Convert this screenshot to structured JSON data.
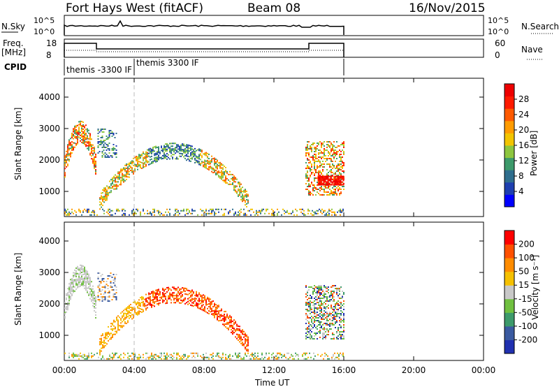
{
  "header": {
    "radar": "Fort Hays West (fitACF)",
    "beam": "Beam 08",
    "date": "16/Nov/2015"
  },
  "top_panels": {
    "nsky_label": "N.Sky",
    "nsky_ticks": [
      "10^5",
      "10^0"
    ],
    "nsearch_label": "N.Search",
    "nsearch_ticks": [
      "10^5",
      "10^0"
    ],
    "freq_label": "Freq.",
    "freq_unit": "[MHz]",
    "freq_ticks": [
      "18",
      "8"
    ],
    "nave_label": "Nave",
    "nave_ticks": [
      "60",
      "0"
    ],
    "cpid_label": "CPID",
    "cpid_entries": [
      "themis -3300 IF",
      "themis 3300 IF"
    ]
  },
  "chart_data": [
    {
      "type": "heatmap",
      "name": "power-panel",
      "ylabel": "Slant Range [km]",
      "y_ticks": [
        1000,
        2000,
        3000,
        4000
      ],
      "ylim": [
        200,
        4600
      ],
      "x_ticks": [
        "00:00",
        "04:00",
        "08:00",
        "12:00",
        "16:00",
        "20:00",
        "00:00"
      ],
      "xlim_hours": [
        0,
        24
      ],
      "data_end_hour": 16,
      "colorbar": {
        "label": "Power [dB]",
        "ticks": [
          "28",
          "24",
          "20",
          "16",
          "12",
          "8",
          "4"
        ],
        "colors": [
          "#0000ff",
          "#1e3fb0",
          "#2f6e8e",
          "#3d9a6b",
          "#8dc63f",
          "#f2c400",
          "#ff9b00",
          "#ff5a00",
          "#ff1a00",
          "#ee0000"
        ]
      }
    },
    {
      "type": "heatmap",
      "name": "velocity-panel",
      "ylabel": "Slant Range [km]",
      "y_ticks": [
        1000,
        2000,
        3000,
        4000
      ],
      "ylim": [
        200,
        4600
      ],
      "x_ticks": [
        "00:00",
        "04:00",
        "08:00",
        "12:00",
        "16:00",
        "20:00",
        "00:00"
      ],
      "xlim_hours": [
        0,
        24
      ],
      "xlabel": "Time UT",
      "colorbar": {
        "label": "Velocity [m s⁻¹]",
        "ticks": [
          "200",
          "100",
          "50",
          "15",
          "-15",
          "-50",
          "-100",
          "-200"
        ],
        "colors": [
          "#2030b0",
          "#3a5aa0",
          "#3d9a6b",
          "#70c040",
          "#c8c8c8",
          "#f5c000",
          "#ff8c00",
          "#ff5000",
          "#ff0000"
        ]
      }
    }
  ]
}
